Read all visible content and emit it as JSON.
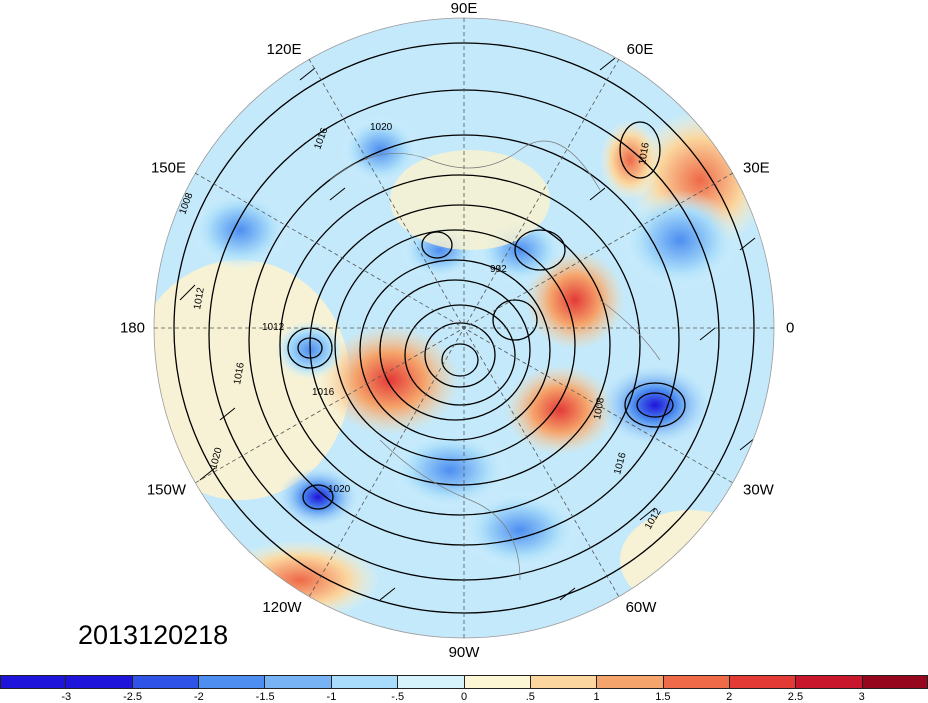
{
  "timestamp": "2013120218",
  "longitude_labels": {
    "top": "90E",
    "upper_left": "120E",
    "upper_right": "60E",
    "left_upper": "150E",
    "right_upper": "30E",
    "left": "180",
    "right": "0",
    "left_lower": "150W",
    "right_lower": "30W",
    "lower_left": "120W",
    "lower_right": "60W",
    "bottom": "90W"
  },
  "contour_labels": [
    "1020",
    "1016",
    "1008",
    "1012",
    "1016",
    "1012",
    "1016",
    "1020",
    "1016",
    "1012",
    "1020",
    "1016",
    "1008",
    "992"
  ],
  "colorbar": {
    "colors": [
      "#1f14d9",
      "#2f53e6",
      "#4d8ef0",
      "#78b4f5",
      "#a8dcfa",
      "#d6f3fc",
      "#fdf6d4",
      "#fbd69e",
      "#f5a46b",
      "#ee6a48",
      "#e33a36",
      "#c8162c",
      "#96061c"
    ],
    "labels": [
      "-3",
      "-2.5",
      "-2",
      "-1.5",
      "-1",
      "-.5",
      "0",
      ".5",
      "1",
      "1.5",
      "2",
      "2.5",
      "3"
    ]
  }
}
